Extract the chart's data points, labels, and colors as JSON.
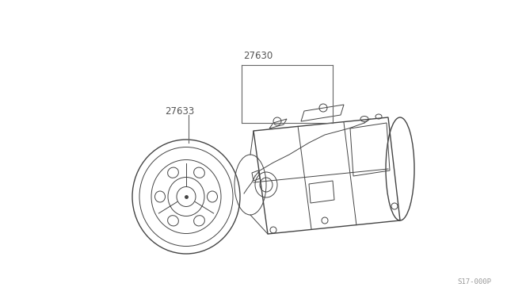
{
  "background_color": "#ffffff",
  "label_27630": "27630",
  "label_27633": "27633",
  "ref_code": "S17-000P",
  "fig_width": 6.4,
  "fig_height": 3.72,
  "dpi": 100,
  "label_color": "#555555",
  "line_color": "#666666",
  "drawing_color": "#444444",
  "drawing_color_light": "#888888"
}
